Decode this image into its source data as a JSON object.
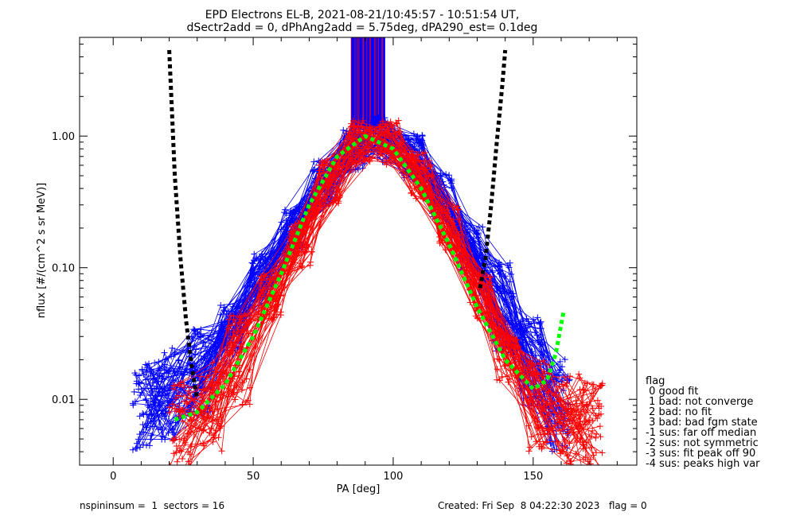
{
  "chart_data": {
    "type": "line",
    "title": "EPD Electrons EL-B, 2021-08-21/10:45:57 - 10:51:54 UT,",
    "subtitle": "dSectr2add = 0, dPhAng2add = 5.75deg, dPA290_est=   0.1deg",
    "xlabel": "PA [deg]",
    "ylabel": "nflux [#/(cm^2 s sr MeV)]",
    "xlim": [
      -12,
      187
    ],
    "ylim_log10": [
      -2.5,
      0.75
    ],
    "log_y": true,
    "xticks": [
      {
        "v": 0,
        "l": "0"
      },
      {
        "v": 50,
        "l": "50"
      },
      {
        "v": 100,
        "l": "100"
      },
      {
        "v": 150,
        "l": "150"
      }
    ],
    "yticks": [
      {
        "v": 0.01,
        "l": "0.01"
      },
      {
        "v": 0.1,
        "l": "0.10"
      },
      {
        "v": 1.0,
        "l": "1.00"
      }
    ],
    "grid": false,
    "series": [
      {
        "color": "#0000ff",
        "style": "line-plus",
        "count": 70,
        "x": [
          11,
          20,
          31,
          42,
          53,
          64,
          75,
          86,
          96,
          107,
          117,
          128,
          139,
          149,
          159
        ],
        "y": [
          0.009,
          0.011,
          0.016,
          0.035,
          0.085,
          0.2,
          0.45,
          0.82,
          0.95,
          0.7,
          0.36,
          0.14,
          0.05,
          0.019,
          0.009
        ]
      },
      {
        "color": "#ff0000",
        "style": "line-plus",
        "count": 55,
        "x": [
          24,
          35,
          45,
          56,
          67,
          77,
          88,
          99,
          110,
          120,
          131,
          141,
          152,
          163,
          171
        ],
        "y": [
          0.006,
          0.009,
          0.02,
          0.06,
          0.15,
          0.45,
          0.88,
          0.88,
          0.5,
          0.2,
          0.06,
          0.02,
          0.009,
          0.007,
          0.006
        ]
      },
      {
        "color": "#000000",
        "style": "dashed-thick",
        "x": [
          20,
          22,
          24,
          26,
          28,
          30
        ],
        "y": [
          4.5,
          0.5,
          0.12,
          0.04,
          0.018,
          0.01
        ]
      },
      {
        "color": "#000000",
        "style": "dashed-thick",
        "x": [
          131,
          133,
          135,
          137,
          139,
          140
        ],
        "y": [
          0.07,
          0.12,
          0.3,
          0.9,
          2.5,
          4.5
        ]
      },
      {
        "color": "#00ff00",
        "style": "dashed-thick",
        "x": [
          22,
          30,
          40,
          50,
          60,
          70,
          80,
          90,
          100,
          110,
          120,
          130,
          140,
          150,
          155,
          158,
          161
        ],
        "y": [
          0.007,
          0.008,
          0.013,
          0.03,
          0.09,
          0.3,
          0.7,
          1.0,
          0.8,
          0.4,
          0.15,
          0.05,
          0.02,
          0.012,
          0.014,
          0.022,
          0.048
        ]
      }
    ],
    "vertical_band": {
      "x_range": [
        85,
        97
      ],
      "y_range_log10": [
        0.06,
        0.75
      ],
      "colors": [
        "#0000ff",
        "#ff0000"
      ]
    }
  },
  "legend": {
    "title": "flag",
    "items": [
      " 0 good fit",
      " 1 bad: not converge",
      " 2 bad: no fit",
      " 3 bad: bad fgm state",
      "-1 sus: far off median",
      "-2 sus: not symmetric",
      "-3 sus: fit peak off 90",
      "-4 sus: peaks high var"
    ]
  },
  "footer": {
    "left": "nspininsum =  1  sectors = 16",
    "right": "Created: Fri Sep  8 04:22:30 2023   flag = 0"
  }
}
